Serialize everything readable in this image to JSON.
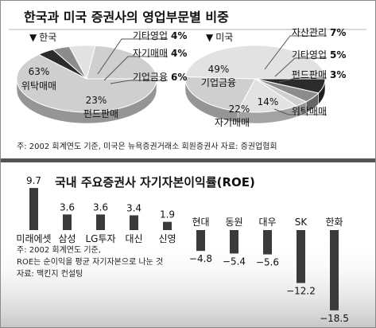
{
  "chart_data": [
    {
      "type": "pie",
      "title": "한국과 미국 증권사의 영업부문별 비중",
      "panels": [
        {
          "name": "한국",
          "slices": [
            {
              "label": "위탁매매",
              "value": 63,
              "value_text": "63%"
            },
            {
              "label": "기타영업",
              "value": 4,
              "value_text": "4%"
            },
            {
              "label": "자기매매",
              "value": 4,
              "value_text": "4%"
            },
            {
              "label": "기업금융",
              "value": 6,
              "value_text": "6%"
            },
            {
              "label": "펀드판매",
              "value": 23,
              "value_text": "23%"
            }
          ]
        },
        {
          "name": "미국",
          "slices": [
            {
              "label": "자산관리",
              "value": 7,
              "value_text": "7%"
            },
            {
              "label": "기타영업",
              "value": 5,
              "value_text": "5%"
            },
            {
              "label": "펀드판매",
              "value": 3,
              "value_text": "3%"
            },
            {
              "label": "위탁매매",
              "value": 14,
              "value_text": "14%"
            },
            {
              "label": "자기매매",
              "value": 22,
              "value_text": "22%"
            },
            {
              "label": "기업금융",
              "value": 49,
              "value_text": "49%"
            }
          ]
        }
      ],
      "note": "주: 2002 회계연도 기준, 미국은 뉴욕증권거래소 회원증권사    자료: 증권업협회"
    },
    {
      "type": "bar",
      "title": "국내 주요증권사 자기자본이익률(ROE)",
      "categories": [
        "미래에셋",
        "삼성",
        "LG투자",
        "대신",
        "신영",
        "현대",
        "동원",
        "대우",
        "SK",
        "한화"
      ],
      "values": [
        9.7,
        3.6,
        3.6,
        3.4,
        1.9,
        -4.8,
        -5.4,
        -5.6,
        -12.2,
        -18.5
      ],
      "value_labels": [
        "9.7",
        "3.6",
        "3.6",
        "3.4",
        "1.9",
        "−4.8",
        "−5.4",
        "−5.6",
        "−12.2",
        "−18.5"
      ],
      "note_lines": [
        "주: 2002 회계연도 기준,",
        "ROE는 순이익을 평균 자기자본으로 나눈 것",
        "자료: 맥킨지 컨설팅"
      ]
    }
  ],
  "colors": {
    "bar": "#3a3a3a",
    "slice_dark": "#2b2b2b",
    "slice_mid": "#8c8c8c",
    "slice_light": "#cfcfcf",
    "slice_pale": "#e2e2e2"
  }
}
